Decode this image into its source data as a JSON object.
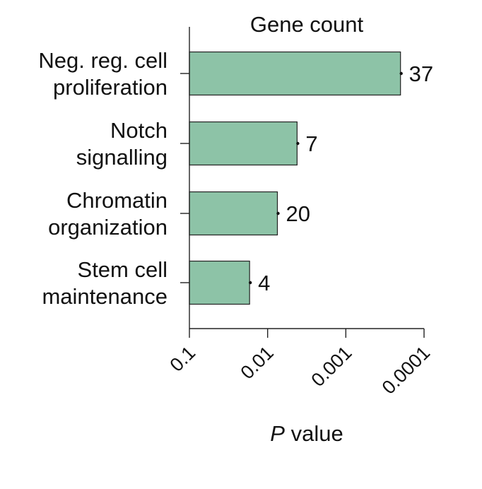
{
  "chart_data": {
    "type": "bar",
    "orientation": "horizontal",
    "title": "Gene count",
    "xlabel_italic": "P",
    "xlabel_rest": " value",
    "ylabel": "",
    "x_scale": "log",
    "x_reversed": true,
    "xlim": [
      0.1,
      0.0001
    ],
    "x_ticks": [
      0.1,
      0.01,
      0.001,
      0.0001
    ],
    "x_tick_labels": [
      "0.1",
      "0.01",
      "0.001",
      "0.0001"
    ],
    "grid": false,
    "bar_color": "#8dc3a7",
    "categories": [
      [
        "Neg. reg. cell",
        "proliferation"
      ],
      [
        "Notch",
        "signalling"
      ],
      [
        "Chromatin",
        "organization"
      ],
      [
        "Stem cell",
        "maintenance"
      ]
    ],
    "values": [
      0.0002,
      0.0042,
      0.0075,
      0.017
    ],
    "gene_counts": [
      "37",
      "7",
      "20",
      "4"
    ]
  }
}
